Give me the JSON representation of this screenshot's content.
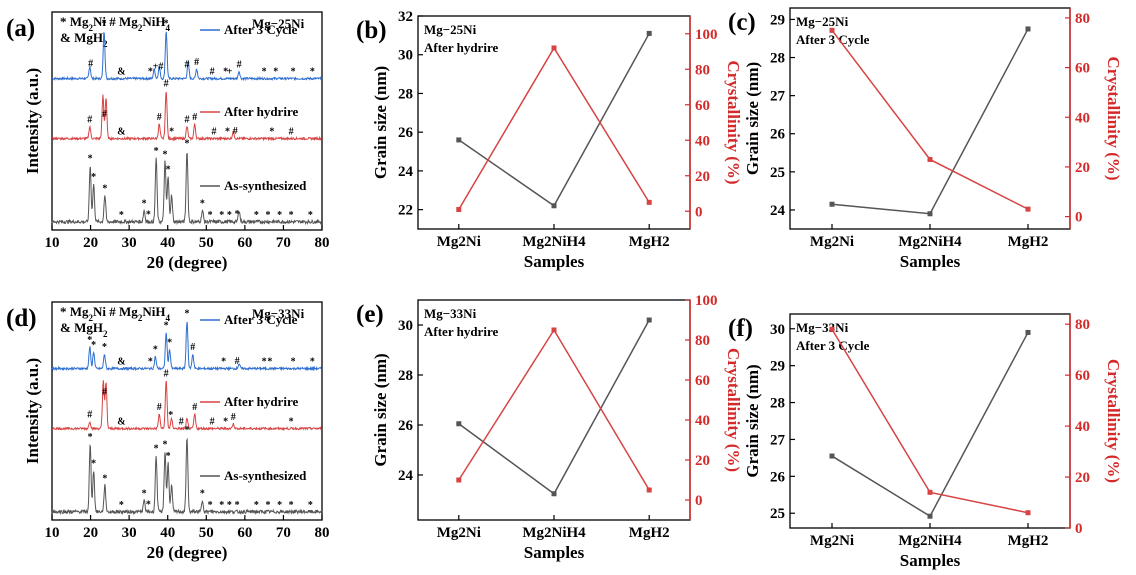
{
  "colors": {
    "gray": "#555555",
    "red": "#d84343",
    "blue": "#2f6fd0",
    "axis_red": "#d42a2a"
  },
  "chart_data": [
    {
      "panel": "(a)",
      "type": "line",
      "title": "Mg−25Ni",
      "xlabel": "2θ (degree)",
      "ylabel": "Intensity (a.u.)",
      "xlim": [
        10,
        80
      ],
      "xticks": [
        "10",
        "20",
        "30",
        "40",
        "50",
        "60",
        "70",
        "80"
      ],
      "phase_legend": [
        "* Mg2Ni  # Mg2NiH4",
        "& MgH2"
      ],
      "series": [
        {
          "name": "After 3 Cycle",
          "peaks": [
            [
              19.8,
              0.25
            ],
            [
              23.5,
              1.0
            ],
            [
              36.5,
              0.2
            ],
            [
              37.8,
              0.25
            ],
            [
              39.6,
              1.0
            ],
            [
              45.3,
              0.35
            ],
            [
              47.5,
              0.2
            ],
            [
              58.5,
              0.15
            ]
          ]
        },
        {
          "name": "After hydrire",
          "peaks": [
            [
              19.8,
              0.25
            ],
            [
              23.2,
              0.9
            ],
            [
              24.0,
              0.85
            ],
            [
              37.8,
              0.3
            ],
            [
              39.6,
              1.0
            ],
            [
              45.0,
              0.25
            ],
            [
              47.0,
              0.3
            ],
            [
              57.0,
              0.15
            ]
          ]
        },
        {
          "name": "As-synthesized",
          "peaks": [
            [
              19.9,
              0.75
            ],
            [
              20.8,
              0.5
            ],
            [
              23.7,
              0.35
            ],
            [
              33.9,
              0.15
            ],
            [
              37.0,
              0.85
            ],
            [
              39.3,
              0.8
            ],
            [
              40.1,
              0.6
            ],
            [
              41.0,
              0.35
            ],
            [
              45.0,
              0.95
            ],
            [
              49.0,
              0.15
            ],
            [
              58.5,
              0.15
            ]
          ]
        }
      ],
      "peak_marks": [
        {
          "series": 0,
          "marks": [
            [
              "*",
              23.5
            ],
            [
              "#",
              20
            ],
            [
              "&",
              28
            ],
            [
              "*",
              35.5
            ],
            [
              "+#",
              37.5
            ],
            [
              "*",
              39.6
            ],
            [
              "#",
              45
            ],
            [
              "#",
              47.5
            ],
            [
              "#",
              51.5
            ],
            [
              "*",
              55
            ],
            [
              "+",
              56
            ],
            [
              "#",
              58.5
            ],
            [
              "*",
              65
            ],
            [
              "*",
              68
            ],
            [
              "*",
              72.5
            ],
            [
              "*",
              77.5
            ]
          ]
        },
        {
          "series": 1,
          "marks": [
            [
              "#",
              23.6
            ],
            [
              "#",
              19.8
            ],
            [
              "&",
              28
            ],
            [
              "#",
              37.8
            ],
            [
              "#",
              39.6
            ],
            [
              "*",
              41
            ],
            [
              "#",
              45
            ],
            [
              "#",
              47
            ],
            [
              "#",
              52
            ],
            [
              "*",
              55.5
            ],
            [
              "#",
              57.5
            ],
            [
              "*",
              67
            ],
            [
              "#",
              72
            ]
          ]
        },
        {
          "series": 2,
          "marks": [
            [
              "*",
              19.9
            ],
            [
              "*",
              20.8
            ],
            [
              "*",
              23.7
            ],
            [
              "*",
              28
            ],
            [
              "*",
              33.9
            ],
            [
              "*",
              35
            ],
            [
              "*",
              37
            ],
            [
              "*",
              39.3
            ],
            [
              "*",
              40.1
            ],
            [
              "*",
              45
            ],
            [
              "*",
              49
            ],
            [
              "*",
              51
            ],
            [
              "*",
              54
            ],
            [
              "*",
              56
            ],
            [
              "*",
              58
            ],
            [
              "*",
              63
            ],
            [
              "*",
              66
            ],
            [
              "*",
              69
            ],
            [
              "*",
              72
            ],
            [
              "*",
              77
            ]
          ]
        }
      ]
    },
    {
      "panel": "(b)",
      "type": "line",
      "annotation": [
        "Mg−25Ni",
        "After hydrire"
      ],
      "xlabel": "Samples",
      "ylabel": "Grain size (nm)",
      "y2label": "Crystallinity (%)",
      "categories": [
        "Mg2Ni",
        "Mg2NiH4",
        "MgH2"
      ],
      "ylim": [
        21,
        32
      ],
      "yticks": [
        "22",
        "24",
        "26",
        "28",
        "30",
        "32"
      ],
      "y2lim": [
        -10,
        110
      ],
      "y2ticks": [
        "0",
        "20",
        "40",
        "60",
        "80",
        "100"
      ],
      "series": [
        {
          "axis": "left",
          "values": [
            25.6,
            22.2,
            31.1
          ]
        },
        {
          "axis": "right",
          "values": [
            1,
            92,
            5
          ]
        }
      ]
    },
    {
      "panel": "(c)",
      "type": "line",
      "annotation": [
        "Mg−25Ni",
        "After 3 Cycle"
      ],
      "xlabel": "Samples",
      "ylabel": "Grain size (nm)",
      "y2label": "Crystallinity (%)",
      "categories": [
        "Mg2Ni",
        "Mg2NiH4",
        "MgH2"
      ],
      "ylim": [
        23.5,
        29.3
      ],
      "yticks": [
        "24",
        "25",
        "26",
        "27",
        "28",
        "29"
      ],
      "y2lim": [
        -5,
        84
      ],
      "y2ticks": [
        "0",
        "20",
        "40",
        "60",
        "80"
      ],
      "series": [
        {
          "axis": "left",
          "values": [
            24.15,
            23.9,
            28.75
          ]
        },
        {
          "axis": "right",
          "values": [
            75,
            23,
            3
          ]
        }
      ]
    },
    {
      "panel": "(d)",
      "type": "line",
      "title": "Mg−33Ni",
      "xlabel": "2θ (degree)",
      "ylabel": "Intensity (a.u.)",
      "xlim": [
        10,
        80
      ],
      "xticks": [
        "10",
        "20",
        "30",
        "40",
        "50",
        "60",
        "70",
        "80"
      ],
      "phase_legend": [
        "* Mg2Ni  # Mg2NiH4",
        "& MgH2"
      ],
      "series": [
        {
          "name": "After 3 Cycle",
          "peaks": [
            [
              19.8,
              0.45
            ],
            [
              20.8,
              0.35
            ],
            [
              23.6,
              0.3
            ],
            [
              36.8,
              0.25
            ],
            [
              39.6,
              0.75
            ],
            [
              40.5,
              0.4
            ],
            [
              45.0,
              1.0
            ],
            [
              46.5,
              0.3
            ],
            [
              58.5,
              0.1
            ]
          ]
        },
        {
          "name": "After hydrire",
          "peaks": [
            [
              19.8,
              0.15
            ],
            [
              23.3,
              1.0
            ],
            [
              24.0,
              0.95
            ],
            [
              37.8,
              0.3
            ],
            [
              39.6,
              1.0
            ],
            [
              41.0,
              0.2
            ],
            [
              45.0,
              0.2
            ],
            [
              47.0,
              0.3
            ],
            [
              57.0,
              0.1
            ]
          ]
        },
        {
          "name": "As-synthesized",
          "peaks": [
            [
              19.9,
              0.9
            ],
            [
              20.8,
              0.55
            ],
            [
              23.7,
              0.35
            ],
            [
              33.9,
              0.15
            ],
            [
              37.0,
              0.75
            ],
            [
              39.3,
              0.8
            ],
            [
              40.1,
              0.65
            ],
            [
              41.0,
              0.35
            ],
            [
              45.0,
              1.0
            ],
            [
              49.0,
              0.15
            ]
          ]
        }
      ],
      "peak_marks": [
        {
          "series": 0,
          "marks": [
            [
              "*",
              19.8
            ],
            [
              "*",
              20.8
            ],
            [
              "*",
              23.6
            ],
            [
              "&",
              28
            ],
            [
              "*",
              35.5
            ],
            [
              "*",
              36.8
            ],
            [
              "*",
              39.6
            ],
            [
              "*",
              40.5
            ],
            [
              "*",
              45
            ],
            [
              "#",
              46.5
            ],
            [
              "*",
              54.5
            ],
            [
              "#",
              58
            ],
            [
              "*",
              65
            ],
            [
              "*",
              66.5
            ],
            [
              "*",
              72.5
            ],
            [
              "*",
              77.5
            ]
          ]
        },
        {
          "series": 1,
          "marks": [
            [
              "#",
              23.6
            ],
            [
              "#",
              19.8
            ],
            [
              "&",
              28
            ],
            [
              "#",
              37.8
            ],
            [
              "#",
              39.6
            ],
            [
              "*",
              40.8
            ],
            [
              "#",
              43.5
            ],
            [
              "#",
              47
            ],
            [
              "#",
              51.5
            ],
            [
              "*",
              55
            ],
            [
              "#",
              57
            ],
            [
              "*",
              72
            ]
          ]
        },
        {
          "series": 2,
          "marks": [
            [
              "*",
              19.9
            ],
            [
              "*",
              20.8
            ],
            [
              "*",
              23.7
            ],
            [
              "*",
              28
            ],
            [
              "*",
              33.9
            ],
            [
              "*",
              35
            ],
            [
              "*",
              37
            ],
            [
              "*",
              39.3
            ],
            [
              "*",
              40.1
            ],
            [
              "*",
              45
            ],
            [
              "*",
              49
            ],
            [
              "*",
              51
            ],
            [
              "*",
              54
            ],
            [
              "*",
              56
            ],
            [
              "*",
              58
            ],
            [
              "*",
              63
            ],
            [
              "*",
              66
            ],
            [
              "*",
              69
            ],
            [
              "*",
              72
            ],
            [
              "*",
              77
            ]
          ]
        }
      ]
    },
    {
      "panel": "(e)",
      "type": "line",
      "annotation": [
        "Mg−33Ni",
        "After hydrire"
      ],
      "xlabel": "Samples",
      "ylabel": "Grain size (nm)",
      "y2label": "Crystallinity (%)",
      "categories": [
        "Mg2Ni",
        "Mg2NiH4",
        "MgH2"
      ],
      "ylim": [
        22.2,
        31.0
      ],
      "yticks": [
        "24",
        "26",
        "28",
        "30"
      ],
      "y2lim": [
        -10,
        100
      ],
      "y2ticks": [
        "0",
        "20",
        "40",
        "60",
        "80",
        "100"
      ],
      "series": [
        {
          "axis": "left",
          "values": [
            26.05,
            23.25,
            30.2
          ]
        },
        {
          "axis": "right",
          "values": [
            10,
            85,
            5
          ]
        }
      ]
    },
    {
      "panel": "(f)",
      "type": "line",
      "annotation": [
        "Mg−33Ni",
        "After 3 Cycle"
      ],
      "xlabel": "Samples",
      "ylabel": "Grain size (nm)",
      "y2label": "Crystallinity (%)",
      "categories": [
        "Mg2Ni",
        "Mg2NiH4",
        "MgH2"
      ],
      "ylim": [
        24.6,
        30.4
      ],
      "yticks": [
        "25",
        "26",
        "27",
        "28",
        "29",
        "30"
      ],
      "y2lim": [
        0,
        84
      ],
      "y2ticks": [
        "0",
        "20",
        "40",
        "60",
        "80"
      ],
      "series": [
        {
          "axis": "left",
          "values": [
            26.55,
            24.92,
            29.9
          ]
        },
        {
          "axis": "right",
          "values": [
            78,
            14,
            6
          ]
        }
      ]
    }
  ]
}
